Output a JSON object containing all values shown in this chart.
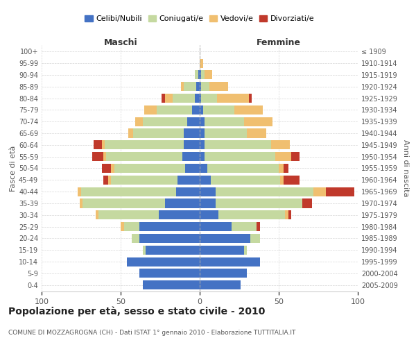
{
  "age_groups": [
    "0-4",
    "5-9",
    "10-14",
    "15-19",
    "20-24",
    "25-29",
    "30-34",
    "35-39",
    "40-44",
    "45-49",
    "50-54",
    "55-59",
    "60-64",
    "65-69",
    "70-74",
    "75-79",
    "80-84",
    "85-89",
    "90-94",
    "95-99",
    "100+"
  ],
  "birth_years": [
    "2005-2009",
    "2000-2004",
    "1995-1999",
    "1990-1994",
    "1985-1989",
    "1980-1984",
    "1975-1979",
    "1970-1974",
    "1965-1969",
    "1960-1964",
    "1955-1959",
    "1950-1954",
    "1945-1949",
    "1940-1944",
    "1935-1939",
    "1930-1934",
    "1925-1929",
    "1920-1924",
    "1915-1919",
    "1910-1914",
    "≤ 1909"
  ],
  "maschi": {
    "celibi": [
      36,
      38,
      46,
      34,
      38,
      38,
      26,
      22,
      15,
      14,
      9,
      11,
      10,
      10,
      8,
      5,
      3,
      2,
      1,
      0,
      0
    ],
    "coniugati": [
      0,
      0,
      0,
      2,
      5,
      10,
      38,
      52,
      60,
      42,
      45,
      48,
      50,
      32,
      28,
      22,
      14,
      8,
      2,
      0,
      0
    ],
    "vedovi": [
      0,
      0,
      0,
      0,
      0,
      2,
      2,
      2,
      2,
      2,
      2,
      2,
      2,
      3,
      5,
      8,
      5,
      2,
      0,
      0,
      0
    ],
    "divorziati": [
      0,
      0,
      0,
      0,
      0,
      0,
      0,
      0,
      0,
      3,
      6,
      7,
      5,
      0,
      0,
      0,
      2,
      0,
      0,
      0,
      0
    ]
  },
  "femmine": {
    "nubili": [
      26,
      30,
      38,
      28,
      32,
      20,
      12,
      10,
      10,
      7,
      5,
      3,
      3,
      3,
      3,
      2,
      1,
      1,
      1,
      0,
      0
    ],
    "coniugate": [
      0,
      0,
      0,
      2,
      6,
      16,
      42,
      55,
      62,
      44,
      45,
      45,
      42,
      27,
      25,
      20,
      10,
      5,
      2,
      0,
      0
    ],
    "vedove": [
      0,
      0,
      0,
      0,
      0,
      0,
      2,
      0,
      8,
      2,
      3,
      10,
      12,
      12,
      18,
      18,
      20,
      12,
      5,
      2,
      0
    ],
    "divorziate": [
      0,
      0,
      0,
      0,
      0,
      2,
      2,
      6,
      18,
      10,
      3,
      5,
      0,
      0,
      0,
      0,
      2,
      0,
      0,
      0,
      0
    ]
  },
  "colors": {
    "celibi_nubili": "#4472c4",
    "coniugati": "#c5d9a0",
    "vedovi": "#f0bf70",
    "divorziati": "#c0392b"
  },
  "xlim": 100,
  "title": "Popolazione per età, sesso e stato civile - 2010",
  "subtitle": "COMUNE DI MOZZAGROGNA (CH) - Dati ISTAT 1° gennaio 2010 - Elaborazione TUTTITALIA.IT",
  "xlabel_left": "Maschi",
  "xlabel_right": "Femmine",
  "ylabel_left": "Fasce di età",
  "ylabel_right": "Anni di nascita",
  "legend_labels": [
    "Celibi/Nubili",
    "Coniugati/e",
    "Vedovi/e",
    "Divorziati/e"
  ],
  "bg_color": "#ffffff",
  "grid_color": "#cccccc"
}
